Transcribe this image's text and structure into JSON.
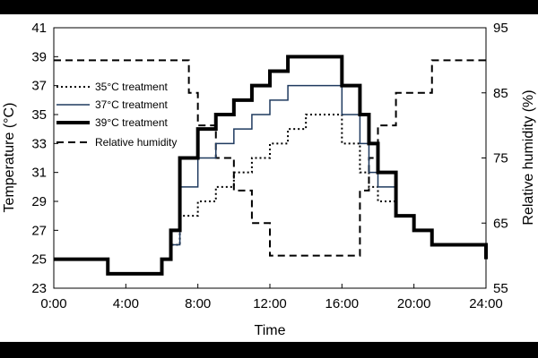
{
  "chart_data": {
    "type": "line",
    "xlabel": "Time",
    "ylabel_left": "Temperature (°C)",
    "ylabel_right": "Relative humidity (%)",
    "x_ticks": [
      "0:00",
      "4:00",
      "8:00",
      "12:00",
      "16:00",
      "20:00",
      "24:00"
    ],
    "y_left_ticks": [
      "23",
      "25",
      "27",
      "29",
      "31",
      "33",
      "35",
      "37",
      "39",
      "41"
    ],
    "y_right_ticks": [
      "55",
      "65",
      "75",
      "85",
      "95"
    ],
    "xlim_hours": [
      0,
      24
    ],
    "ylim_left": [
      23,
      41
    ],
    "ylim_right": [
      55,
      95
    ],
    "grid": false,
    "legend_position": "left",
    "series": [
      {
        "name": "35°C treatment",
        "axis": "left",
        "style": "dotted",
        "color": "#000000",
        "step_hours": [
          0,
          3,
          6,
          6.5,
          7,
          8,
          9,
          10,
          11,
          12,
          13,
          14,
          15,
          16,
          17,
          17.5,
          18,
          19,
          20,
          21,
          22,
          23,
          24
        ],
        "values": [
          25,
          24,
          25,
          26,
          28,
          29,
          30,
          31,
          32,
          33,
          34,
          35,
          35,
          33,
          31,
          30,
          29,
          28,
          27,
          26,
          26,
          26,
          26
        ]
      },
      {
        "name": "37°C treatment",
        "axis": "left",
        "style": "thin",
        "color": "#1f3a5f",
        "step_hours": [
          0,
          3,
          6,
          6.5,
          7,
          8,
          9,
          10,
          11,
          12,
          13,
          14,
          15,
          16,
          17,
          17.5,
          18,
          19,
          20,
          21,
          22,
          23,
          24
        ],
        "values": [
          25,
          24,
          25,
          26,
          30,
          32,
          33,
          34,
          35,
          36,
          37,
          37,
          37,
          35,
          33,
          31,
          30,
          28,
          27,
          26,
          26,
          26,
          26
        ]
      },
      {
        "name": "39°C treatment",
        "axis": "left",
        "style": "thick",
        "color": "#000000",
        "step_hours": [
          0,
          3,
          6,
          6.5,
          7,
          8,
          9,
          10,
          11,
          12,
          13,
          14,
          15,
          16,
          17,
          17.5,
          18,
          19,
          20,
          21,
          22,
          23,
          24
        ],
        "values": [
          25,
          24,
          25,
          27,
          32,
          34,
          35,
          36,
          37,
          38,
          39,
          39,
          39,
          37,
          35,
          33,
          31,
          28,
          27,
          26,
          26,
          26,
          25
        ]
      },
      {
        "name": "Relative humidity",
        "axis": "right",
        "style": "dashed",
        "color": "#000000",
        "step_hours": [
          0,
          7,
          7.5,
          8,
          9,
          10,
          11,
          12,
          13,
          14,
          15,
          16,
          17,
          17.5,
          18,
          19,
          20,
          21,
          24
        ],
        "values": [
          90,
          90,
          85,
          80,
          75,
          70,
          65,
          60,
          60,
          60,
          60,
          60,
          70,
          75,
          80,
          85,
          85,
          90,
          90
        ]
      }
    ]
  }
}
